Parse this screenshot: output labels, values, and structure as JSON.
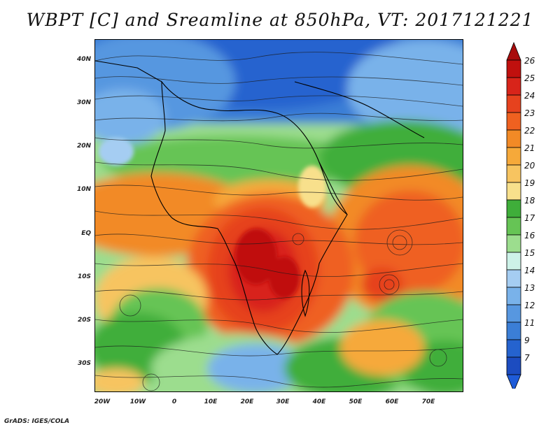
{
  "title": "WBPT [C] and Sreamline at 850hPa, VT: 2017121221",
  "credit": "GrADS: IGES/COLA",
  "axes": {
    "lat_labels": [
      "40N",
      "30N",
      "20N",
      "10N",
      "EQ",
      "10S",
      "20S",
      "30S"
    ],
    "lon_labels": [
      "20W",
      "10W",
      "0",
      "10E",
      "20E",
      "30E",
      "40E",
      "50E",
      "60E",
      "70E"
    ]
  },
  "colorbar": {
    "labels": [
      "26",
      "25",
      "24",
      "23",
      "22",
      "21",
      "20",
      "19",
      "18",
      "17",
      "16",
      "15",
      "14",
      "13",
      "12",
      "11",
      "9",
      "7"
    ],
    "colors": [
      "#c0100e",
      "#d8241a",
      "#e6421e",
      "#ef6120",
      "#f28a26",
      "#f6a93a",
      "#f7c460",
      "#f8e08c",
      "#3fae3a",
      "#66c455",
      "#9cdd8e",
      "#cdf2e8",
      "#a5cdf2",
      "#79b2ea",
      "#5797e0",
      "#3b7ed6",
      "#2563cf",
      "#1c4cc0"
    ],
    "top_arrow_color": "#a80c0c",
    "bottom_arrow_color": "#1e5bd8"
  }
}
